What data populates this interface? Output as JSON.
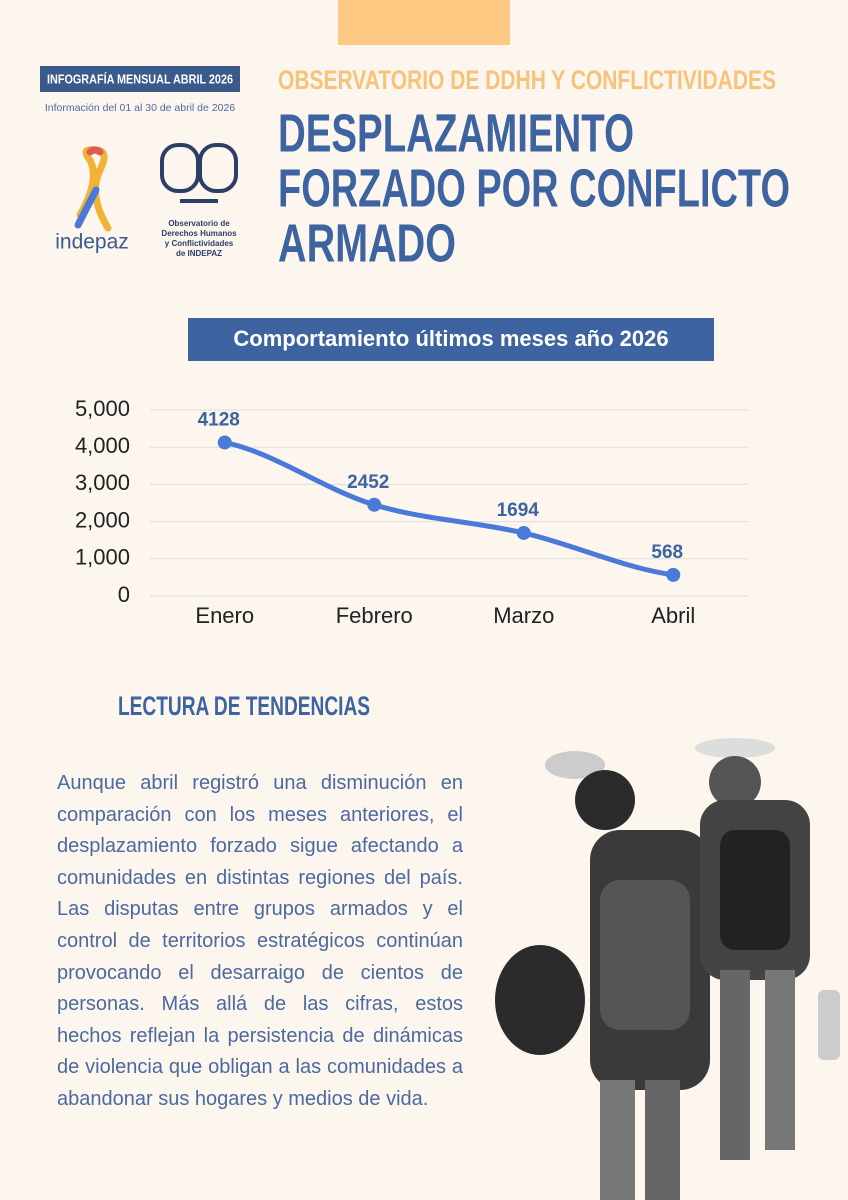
{
  "header": {
    "badge": "INFOGRAFÍA MENSUAL ABRIL 2026",
    "date_range": "Información del 01 al 30 de abril de 2026",
    "logo_name": "indepaz",
    "observatory_logo": [
      "Observatorio de",
      "Derechos Humanos",
      "y  Conflictividades",
      "de INDEPAZ"
    ],
    "kicker": "OBSERVATORIO DE DDHH Y CONFLICTIVIDADES",
    "title": [
      "DESPLAZAMIENTO",
      "FORZADO POR CONFLICTO",
      "ARMADO"
    ]
  },
  "chart_data": {
    "type": "line",
    "title": "Comportamiento últimos meses año 2026",
    "categories": [
      "Enero",
      "Febrero",
      "Marzo",
      "Abril"
    ],
    "values": [
      4128,
      2452,
      1694,
      568
    ],
    "color": "#4a79d8",
    "ylim": [
      0,
      5000
    ],
    "yticks": [
      0,
      {
        "value": 1000,
        "label": "1,000"
      },
      {
        "value": 2000,
        "label": "2,000"
      },
      {
        "value": 3000,
        "label": "3,000"
      },
      {
        "value": 4000,
        "label": "4,000"
      },
      {
        "value": 5000,
        "label": "5,000"
      }
    ],
    "grid": true
  },
  "section": {
    "title": "LECTURA DE TENDENCIAS",
    "text": "Aunque abril registró una disminución en comparación con los meses anteriores, el desplazamiento forzado sigue afectando a comunidades en distintas regiones del país. Las disputas entre grupos armados y el control de territorios estratégicos continúan provocando el desarraigo de cientos de personas. Más allá de las cifras, estos hechos reflejan la persistencia de dinámicas de violencia que obligan a las comunidades a abandonar sus hogares y medios de vida."
  }
}
